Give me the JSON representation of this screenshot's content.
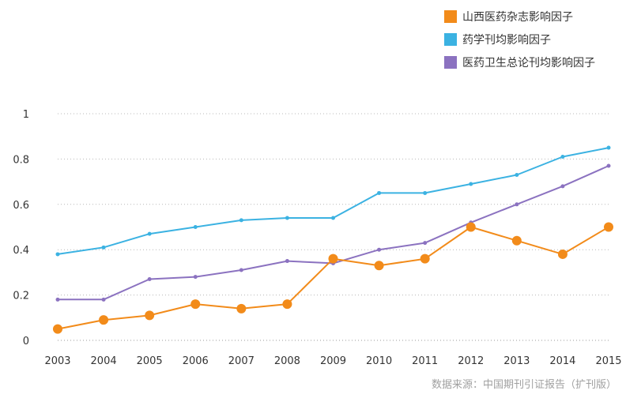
{
  "chart_data": {
    "type": "line",
    "title": "",
    "xlabel": "",
    "ylabel": "",
    "x": [
      "2003",
      "2004",
      "2005",
      "2006",
      "2007",
      "2008",
      "2009",
      "2010",
      "2011",
      "2012",
      "2013",
      "2014",
      "2015"
    ],
    "ylim": [
      0,
      1
    ],
    "yticks": [
      "0",
      "0.2",
      "0.4",
      "0.6",
      "0.8",
      "1"
    ],
    "grid": true,
    "legend_position": "top-right",
    "series": [
      {
        "name": "山西医药杂志影响因子",
        "color": "#f28b1a",
        "marker": "large-circle",
        "values": [
          0.05,
          0.09,
          0.11,
          0.16,
          0.14,
          0.16,
          0.36,
          0.33,
          0.36,
          0.5,
          0.44,
          0.38,
          0.5
        ]
      },
      {
        "name": "药学刊均影响因子",
        "color": "#3bb2e2",
        "marker": "small-dot",
        "values": [
          0.38,
          0.41,
          0.47,
          0.5,
          0.53,
          0.54,
          0.54,
          0.65,
          0.65,
          0.69,
          0.73,
          0.81,
          0.85
        ]
      },
      {
        "name": "医药卫生总论刊均影响因子",
        "color": "#8b72c0",
        "marker": "small-dot",
        "values": [
          0.18,
          0.18,
          0.27,
          0.28,
          0.31,
          0.35,
          0.34,
          0.4,
          0.43,
          0.52,
          0.6,
          0.68,
          0.77
        ]
      }
    ]
  },
  "source_text": "数据来源：中国期刊引证报告（扩刊版）"
}
